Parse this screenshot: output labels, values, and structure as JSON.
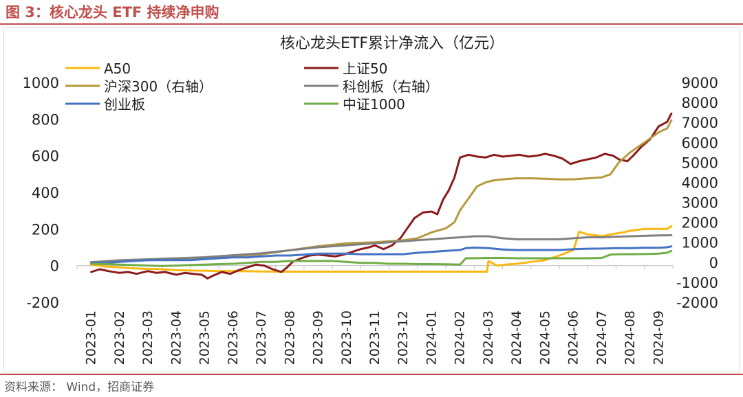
{
  "figure": {
    "title": "图 3：核心龙头 ETF 持续净申购",
    "source": "资料来源： Wind，招商证券"
  },
  "colors": {
    "brand_red": "#c0504d",
    "A50": "#f9b810",
    "SSE50": "#8b1a1a",
    "CSI300": "#b59a3c",
    "STAR": "#808080",
    "ChiNext": "#4472c4",
    "CSI1000": "#70ad47"
  },
  "chart_data": {
    "type": "line",
    "title": "核心龙头ETF累计净流入（亿元）",
    "xlabel": "",
    "ylabel": "",
    "y_left_lim": [
      -200,
      1000
    ],
    "y_left_ticks": [
      -200,
      0,
      200,
      400,
      600,
      800,
      1000
    ],
    "y_right_lim": [
      -2000,
      9000
    ],
    "y_right_ticks": [
      -2000,
      -1000,
      0,
      1000,
      2000,
      3000,
      4000,
      5000,
      6000,
      7000,
      8000,
      9000
    ],
    "x_tick_labels": [
      "2023-01",
      "2023-02",
      "2023-03",
      "2023-04",
      "2023-05",
      "2023-06",
      "2023-07",
      "2023-08",
      "2023-09",
      "2023-10",
      "2023-11",
      "2023-12",
      "2024-01",
      "2024-02",
      "2024-03",
      "2024-04",
      "2024-05",
      "2024-06",
      "2024-07",
      "2024-08",
      "2024-09"
    ],
    "grid": false,
    "legend_position": "top",
    "series": [
      {
        "name": "A50",
        "axis": "left",
        "color_key": "A50",
        "points": [
          [
            0,
            5
          ],
          [
            0.5,
            -5
          ],
          [
            1,
            -10
          ],
          [
            1.5,
            -15
          ],
          [
            2,
            -18
          ],
          [
            2.5,
            -20
          ],
          [
            3,
            -25
          ],
          [
            3.5,
            -27
          ],
          [
            4,
            -28
          ],
          [
            4.5,
            -30
          ],
          [
            5,
            -30
          ],
          [
            5.5,
            -31
          ],
          [
            6,
            -32
          ],
          [
            6.5,
            -33
          ],
          [
            7,
            -33
          ],
          [
            7.5,
            -33
          ],
          [
            8,
            -33
          ],
          [
            8.5,
            -33
          ],
          [
            9,
            -33
          ],
          [
            9.5,
            -33
          ],
          [
            10,
            -33
          ],
          [
            10.5,
            -33
          ],
          [
            11,
            -33
          ],
          [
            11.5,
            -33
          ],
          [
            12,
            -33
          ],
          [
            12.5,
            -33
          ],
          [
            13,
            -33
          ],
          [
            13.5,
            -33
          ],
          [
            13.95,
            -33
          ],
          [
            14.0,
            25
          ],
          [
            14.3,
            0
          ],
          [
            14.6,
            5
          ],
          [
            15,
            10
          ],
          [
            15.5,
            20
          ],
          [
            16,
            30
          ],
          [
            16.5,
            55
          ],
          [
            17,
            85
          ],
          [
            17.2,
            185
          ],
          [
            17.5,
            170
          ],
          [
            17.8,
            165
          ],
          [
            18,
            160
          ],
          [
            18.3,
            170
          ],
          [
            18.7,
            180
          ],
          [
            19,
            190
          ],
          [
            19.5,
            200
          ],
          [
            20,
            200
          ],
          [
            20.3,
            200
          ],
          [
            20.45,
            215
          ]
        ]
      },
      {
        "name": "上证50",
        "axis": "left",
        "color_key": "SSE50",
        "points": [
          [
            0,
            -35
          ],
          [
            0.3,
            -20
          ],
          [
            0.6,
            -30
          ],
          [
            1,
            -40
          ],
          [
            1.3,
            -35
          ],
          [
            1.6,
            -45
          ],
          [
            2,
            -30
          ],
          [
            2.3,
            -40
          ],
          [
            2.6,
            -35
          ],
          [
            3,
            -50
          ],
          [
            3.3,
            -40
          ],
          [
            3.6,
            -45
          ],
          [
            3.9,
            -50
          ],
          [
            4.1,
            -70
          ],
          [
            4.3,
            -55
          ],
          [
            4.6,
            -35
          ],
          [
            4.9,
            -45
          ],
          [
            5.2,
            -25
          ],
          [
            5.5,
            -10
          ],
          [
            5.8,
            5
          ],
          [
            6.1,
            0
          ],
          [
            6.4,
            -20
          ],
          [
            6.7,
            -35
          ],
          [
            6.9,
            -10
          ],
          [
            7.1,
            20
          ],
          [
            7.4,
            40
          ],
          [
            7.7,
            55
          ],
          [
            8,
            60
          ],
          [
            8.3,
            55
          ],
          [
            8.6,
            50
          ],
          [
            8.9,
            60
          ],
          [
            9.2,
            75
          ],
          [
            9.5,
            90
          ],
          [
            9.8,
            100
          ],
          [
            10,
            110
          ],
          [
            10.3,
            90
          ],
          [
            10.6,
            110
          ],
          [
            10.9,
            150
          ],
          [
            11.1,
            195
          ],
          [
            11.4,
            260
          ],
          [
            11.7,
            290
          ],
          [
            12,
            295
          ],
          [
            12.2,
            280
          ],
          [
            12.4,
            360
          ],
          [
            12.6,
            410
          ],
          [
            12.8,
            480
          ],
          [
            13,
            590
          ],
          [
            13.3,
            605
          ],
          [
            13.6,
            595
          ],
          [
            13.9,
            590
          ],
          [
            14.2,
            605
          ],
          [
            14.5,
            595
          ],
          [
            14.8,
            600
          ],
          [
            15.1,
            605
          ],
          [
            15.4,
            595
          ],
          [
            15.7,
            600
          ],
          [
            16,
            610
          ],
          [
            16.3,
            600
          ],
          [
            16.6,
            585
          ],
          [
            16.9,
            555
          ],
          [
            17.2,
            570
          ],
          [
            17.5,
            580
          ],
          [
            17.8,
            590
          ],
          [
            18.1,
            610
          ],
          [
            18.4,
            600
          ],
          [
            18.6,
            580
          ],
          [
            18.9,
            570
          ],
          [
            19.1,
            600
          ],
          [
            19.4,
            650
          ],
          [
            19.7,
            690
          ],
          [
            20,
            760
          ],
          [
            20.3,
            785
          ],
          [
            20.45,
            830
          ]
        ]
      },
      {
        "name": "沪深300（右轴）",
        "axis": "right",
        "color_key": "CSI300",
        "points": [
          [
            0,
            0
          ],
          [
            1,
            50
          ],
          [
            2,
            100
          ],
          [
            3,
            150
          ],
          [
            4,
            200
          ],
          [
            5,
            300
          ],
          [
            6,
            400
          ],
          [
            7,
            600
          ],
          [
            8,
            800
          ],
          [
            9,
            950
          ],
          [
            10,
            1000
          ],
          [
            10.5,
            1050
          ],
          [
            11,
            1100
          ],
          [
            11.5,
            1200
          ],
          [
            12,
            1500
          ],
          [
            12.5,
            1700
          ],
          [
            12.8,
            2000
          ],
          [
            13,
            2600
          ],
          [
            13.3,
            3200
          ],
          [
            13.6,
            3800
          ],
          [
            13.9,
            4000
          ],
          [
            14.2,
            4100
          ],
          [
            14.5,
            4150
          ],
          [
            15,
            4200
          ],
          [
            15.5,
            4200
          ],
          [
            16,
            4180
          ],
          [
            16.5,
            4150
          ],
          [
            17,
            4150
          ],
          [
            17.5,
            4200
          ],
          [
            18,
            4250
          ],
          [
            18.3,
            4400
          ],
          [
            18.6,
            5000
          ],
          [
            19,
            5500
          ],
          [
            19.5,
            6000
          ],
          [
            20,
            6500
          ],
          [
            20.3,
            6700
          ],
          [
            20.45,
            7100
          ]
        ]
      },
      {
        "name": "科创板（右轴）",
        "axis": "right",
        "color_key": "STAR",
        "points": [
          [
            0,
            0
          ],
          [
            1,
            100
          ],
          [
            2,
            150
          ],
          [
            3,
            200
          ],
          [
            4,
            250
          ],
          [
            5,
            350
          ],
          [
            6,
            450
          ],
          [
            7,
            600
          ],
          [
            8,
            750
          ],
          [
            9,
            850
          ],
          [
            10,
            950
          ],
          [
            10.5,
            1000
          ],
          [
            11,
            1050
          ],
          [
            11.5,
            1100
          ],
          [
            12,
            1150
          ],
          [
            12.5,
            1200
          ],
          [
            13,
            1250
          ],
          [
            13.5,
            1300
          ],
          [
            14,
            1300
          ],
          [
            14.5,
            1200
          ],
          [
            15,
            1150
          ],
          [
            15.5,
            1150
          ],
          [
            16,
            1150
          ],
          [
            16.5,
            1150
          ],
          [
            17,
            1200
          ],
          [
            17.5,
            1250
          ],
          [
            18,
            1250
          ],
          [
            18.5,
            1280
          ],
          [
            19,
            1300
          ],
          [
            19.5,
            1320
          ],
          [
            20,
            1340
          ],
          [
            20.45,
            1350
          ]
        ]
      },
      {
        "name": "创业板",
        "axis": "left",
        "color_key": "ChiNext",
        "points": [
          [
            0,
            15
          ],
          [
            0.5,
            15
          ],
          [
            1,
            20
          ],
          [
            1.5,
            25
          ],
          [
            2,
            30
          ],
          [
            2.5,
            30
          ],
          [
            3,
            30
          ],
          [
            3.5,
            30
          ],
          [
            4,
            35
          ],
          [
            4.5,
            40
          ],
          [
            5,
            45
          ],
          [
            5.5,
            45
          ],
          [
            6,
            50
          ],
          [
            6.5,
            55
          ],
          [
            7,
            55
          ],
          [
            7.5,
            60
          ],
          [
            8,
            65
          ],
          [
            8.5,
            65
          ],
          [
            9,
            65
          ],
          [
            9.5,
            62
          ],
          [
            10,
            62
          ],
          [
            10.5,
            62
          ],
          [
            11,
            62
          ],
          [
            11.5,
            70
          ],
          [
            12,
            75
          ],
          [
            12.5,
            80
          ],
          [
            13,
            85
          ],
          [
            13.2,
            95
          ],
          [
            13.5,
            98
          ],
          [
            14,
            95
          ],
          [
            14.5,
            88
          ],
          [
            15,
            85
          ],
          [
            15.5,
            85
          ],
          [
            16,
            85
          ],
          [
            16.5,
            85
          ],
          [
            17,
            90
          ],
          [
            17.5,
            92
          ],
          [
            18,
            93
          ],
          [
            18.5,
            95
          ],
          [
            19,
            95
          ],
          [
            19.5,
            97
          ],
          [
            20,
            97
          ],
          [
            20.3,
            100
          ],
          [
            20.45,
            105
          ]
        ]
      },
      {
        "name": "中证1000",
        "axis": "left",
        "color_key": "CSI1000",
        "points": [
          [
            0,
            10
          ],
          [
            0.5,
            8
          ],
          [
            1,
            5
          ],
          [
            1.5,
            3
          ],
          [
            2,
            0
          ],
          [
            2.5,
            -2
          ],
          [
            3,
            0
          ],
          [
            3.5,
            3
          ],
          [
            4,
            5
          ],
          [
            4.5,
            8
          ],
          [
            5,
            10
          ],
          [
            5.5,
            15
          ],
          [
            6,
            20
          ],
          [
            6.5,
            20
          ],
          [
            7,
            25
          ],
          [
            7.5,
            25
          ],
          [
            8,
            25
          ],
          [
            8.5,
            25
          ],
          [
            9,
            20
          ],
          [
            9.5,
            15
          ],
          [
            10,
            15
          ],
          [
            10.5,
            10
          ],
          [
            11,
            10
          ],
          [
            11.5,
            8
          ],
          [
            12,
            8
          ],
          [
            12.5,
            7
          ],
          [
            13,
            5
          ],
          [
            13.2,
            40
          ],
          [
            13.5,
            40
          ],
          [
            14,
            42
          ],
          [
            14.5,
            42
          ],
          [
            15,
            40
          ],
          [
            15.5,
            40
          ],
          [
            16,
            40
          ],
          [
            16.5,
            40
          ],
          [
            17,
            40
          ],
          [
            17.5,
            40
          ],
          [
            18,
            42
          ],
          [
            18.3,
            60
          ],
          [
            18.6,
            62
          ],
          [
            19,
            62
          ],
          [
            19.5,
            63
          ],
          [
            20,
            65
          ],
          [
            20.3,
            70
          ],
          [
            20.45,
            80
          ]
        ]
      }
    ]
  }
}
